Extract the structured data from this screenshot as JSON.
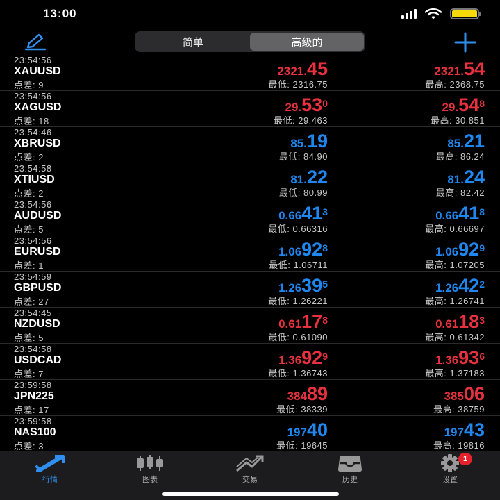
{
  "status": {
    "time": "13:00"
  },
  "tabs_segment": [
    "简单",
    "高级的"
  ],
  "quotes": [
    {
      "time": "23:54:56",
      "symbol": "XAUUSD",
      "spread": "点差: 9",
      "color": "red",
      "bid": {
        "pre": "2321.",
        "big": "45",
        "sup": ""
      },
      "ask": {
        "pre": "2321.",
        "big": "54",
        "sup": ""
      },
      "low": "最低: 2316.75",
      "high": "最高: 2368.75"
    },
    {
      "time": "23:54:56",
      "symbol": "XAGUSD",
      "spread": "点差: 18",
      "color": "red",
      "bid": {
        "pre": "29.",
        "big": "53",
        "sup": "0"
      },
      "ask": {
        "pre": "29.",
        "big": "54",
        "sup": "8"
      },
      "low": "最低: 29.463",
      "high": "最高: 30.851"
    },
    {
      "time": "23:54:46",
      "symbol": "XBRUSD",
      "spread": "点差: 2",
      "color": "blue",
      "bid": {
        "pre": "85.",
        "big": "19",
        "sup": ""
      },
      "ask": {
        "pre": "85.",
        "big": "21",
        "sup": ""
      },
      "low": "最低: 84.90",
      "high": "最高: 86.24"
    },
    {
      "time": "23:54:58",
      "symbol": "XTIUSD",
      "spread": "点差: 2",
      "color": "blue",
      "bid": {
        "pre": "81.",
        "big": "22",
        "sup": ""
      },
      "ask": {
        "pre": "81.",
        "big": "24",
        "sup": ""
      },
      "low": "最低: 80.99",
      "high": "最高: 82.42"
    },
    {
      "time": "23:54:56",
      "symbol": "AUDUSD",
      "spread": "点差: 5",
      "color": "blue",
      "bid": {
        "pre": "0.66",
        "big": "41",
        "sup": "3"
      },
      "ask": {
        "pre": "0.66",
        "big": "41",
        "sup": "8"
      },
      "low": "最低: 0.66316",
      "high": "最高: 0.66697"
    },
    {
      "time": "23:54:56",
      "symbol": "EURUSD",
      "spread": "点差: 1",
      "color": "blue",
      "bid": {
        "pre": "1.06",
        "big": "92",
        "sup": "8"
      },
      "ask": {
        "pre": "1.06",
        "big": "92",
        "sup": "9"
      },
      "low": "最低: 1.06711",
      "high": "最高: 1.07205"
    },
    {
      "time": "23:54:59",
      "symbol": "GBPUSD",
      "spread": "点差: 27",
      "color": "blue",
      "bid": {
        "pre": "1.26",
        "big": "39",
        "sup": "5"
      },
      "ask": {
        "pre": "1.26",
        "big": "42",
        "sup": "2"
      },
      "low": "最低: 1.26221",
      "high": "最高: 1.26741"
    },
    {
      "time": "23:54:45",
      "symbol": "NZDUSD",
      "spread": "点差: 5",
      "color": "red",
      "bid": {
        "pre": "0.61",
        "big": "17",
        "sup": "8"
      },
      "ask": {
        "pre": "0.61",
        "big": "18",
        "sup": "3"
      },
      "low": "最低: 0.61090",
      "high": "最高: 0.61342"
    },
    {
      "time": "23:54:58",
      "symbol": "USDCAD",
      "spread": "点差: 7",
      "color": "red",
      "bid": {
        "pre": "1.36",
        "big": "92",
        "sup": "9"
      },
      "ask": {
        "pre": "1.36",
        "big": "93",
        "sup": "6"
      },
      "low": "最低: 1.36743",
      "high": "最高: 1.37183"
    },
    {
      "time": "23:59:58",
      "symbol": "JPN225",
      "spread": "点差: 17",
      "color": "red",
      "bid": {
        "pre": "384",
        "big": "89",
        "sup": ""
      },
      "ask": {
        "pre": "385",
        "big": "06",
        "sup": ""
      },
      "low": "最低: 38339",
      "high": "最高: 38759"
    },
    {
      "time": "23:59:58",
      "symbol": "NAS100",
      "spread": "点差: 3",
      "color": "blue",
      "bid": {
        "pre": "197",
        "big": "40",
        "sup": ""
      },
      "ask": {
        "pre": "197",
        "big": "43",
        "sup": ""
      },
      "low": "最低: 19645",
      "high": "最高: 19816"
    }
  ],
  "tabbar": {
    "quotes": "行情",
    "charts": "图表",
    "trade": "交易",
    "history": "历史",
    "settings": "设置",
    "settings_badge": "1"
  },
  "colors": {
    "red": "#e8313e",
    "blue": "#1e88f0",
    "accent": "#2f8ff0"
  },
  "icons": [
    "signal-icon",
    "wifi-icon",
    "battery-icon",
    "pencil-icon",
    "plus-icon",
    "quotes-icon",
    "candlestick-icon",
    "trade-icon",
    "history-icon",
    "gear-icon"
  ]
}
